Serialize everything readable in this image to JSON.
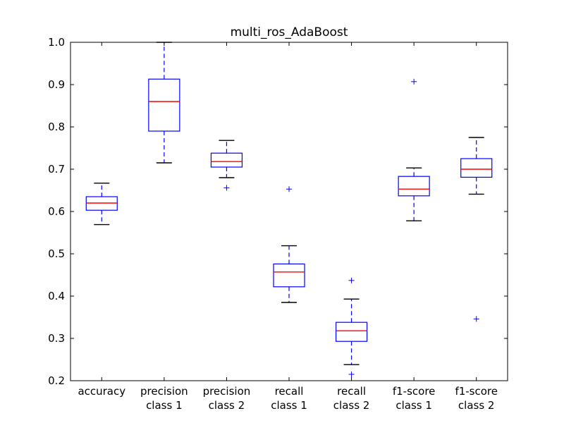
{
  "chart_data": {
    "type": "boxplot",
    "title": "multi_ros_AdaBoost",
    "xlabel": "",
    "ylabel": "",
    "ylim": [
      0.2,
      1.0
    ],
    "yticks": [
      "0.2",
      "0.3",
      "0.4",
      "0.5",
      "0.6",
      "0.7",
      "0.8",
      "0.9",
      "1.0"
    ],
    "grid": false,
    "colors": {
      "box": "#0000ff",
      "median": "#ff0000",
      "cap": "#000000",
      "flier": "#0000ff"
    },
    "categories": [
      [
        "accuracy"
      ],
      [
        "precision",
        "class 1"
      ],
      [
        "precision",
        "class 2"
      ],
      [
        "recall",
        "class 1"
      ],
      [
        "recall",
        "class 2"
      ],
      [
        "f1-score",
        "class 1"
      ],
      [
        "f1-score",
        "class 2"
      ]
    ],
    "boxes": [
      {
        "whislo": 0.569,
        "q1": 0.603,
        "med": 0.62,
        "q3": 0.635,
        "whishi": 0.667,
        "fliers": []
      },
      {
        "whislo": 0.715,
        "q1": 0.79,
        "med": 0.86,
        "q3": 0.913,
        "whishi": 1.0,
        "fliers": []
      },
      {
        "whislo": 0.68,
        "q1": 0.705,
        "med": 0.718,
        "q3": 0.738,
        "whishi": 0.768,
        "fliers": [
          0.656
        ]
      },
      {
        "whislo": 0.385,
        "q1": 0.422,
        "med": 0.457,
        "q3": 0.476,
        "whishi": 0.519,
        "fliers": [
          0.653
        ]
      },
      {
        "whislo": 0.238,
        "q1": 0.293,
        "med": 0.318,
        "q3": 0.338,
        "whishi": 0.393,
        "fliers": [
          0.437,
          0.215
        ]
      },
      {
        "whislo": 0.578,
        "q1": 0.637,
        "med": 0.653,
        "q3": 0.683,
        "whishi": 0.703,
        "fliers": [
          0.907
        ]
      },
      {
        "whislo": 0.641,
        "q1": 0.681,
        "med": 0.7,
        "q3": 0.725,
        "whishi": 0.775,
        "fliers": [
          0.346
        ]
      }
    ]
  }
}
